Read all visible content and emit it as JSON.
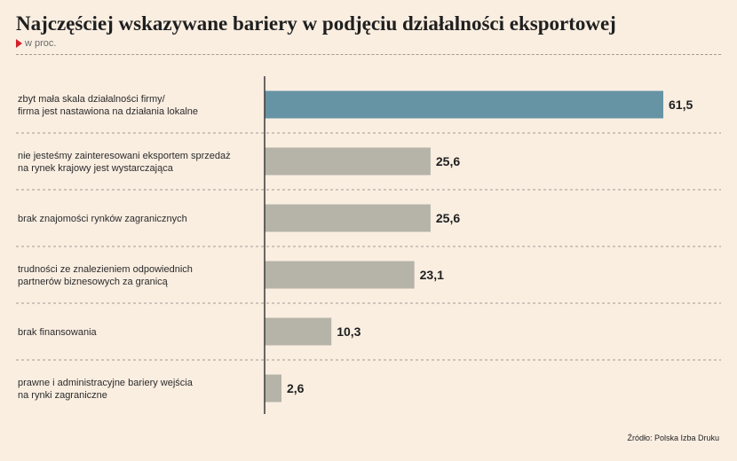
{
  "title": "Najczęściej wskazywane bariery w podjęciu działalności eksportowej",
  "subtitle": "w proc.",
  "source": "Źródło: Polska Izba Druku",
  "colors": {
    "background": "#faeee1",
    "highlight_bar": "#6794a4",
    "default_bar": "#b6b3a8",
    "subtitle_marker": "#d3202a"
  },
  "chart_data": {
    "type": "bar",
    "orientation": "horizontal",
    "categories": [
      [
        "zbyt mała skala działalności firmy/",
        "firma jest nastawiona na działania lokalne"
      ],
      [
        "nie jesteśmy zainteresowani eksportem sprzedaż",
        "na rynek krajowy jest wystarczająca"
      ],
      [
        "brak znajomości rynków zagranicznych"
      ],
      [
        "trudności ze znalezieniem odpowiednich",
        "partnerów biznesowych za granicą"
      ],
      [
        "brak finansowania"
      ],
      [
        "prawne i administracyjne bariery wejścia",
        "na rynki zagraniczne"
      ]
    ],
    "values": [
      61.5,
      25.6,
      25.6,
      23.1,
      10.3,
      2.6
    ],
    "value_labels": [
      "61,5",
      "25,6",
      "25,6",
      "23,1",
      "10,3",
      "2,6"
    ],
    "highlight_index": 0,
    "xlim": [
      0,
      61.5
    ],
    "unit": "w proc.",
    "grid": false
  }
}
